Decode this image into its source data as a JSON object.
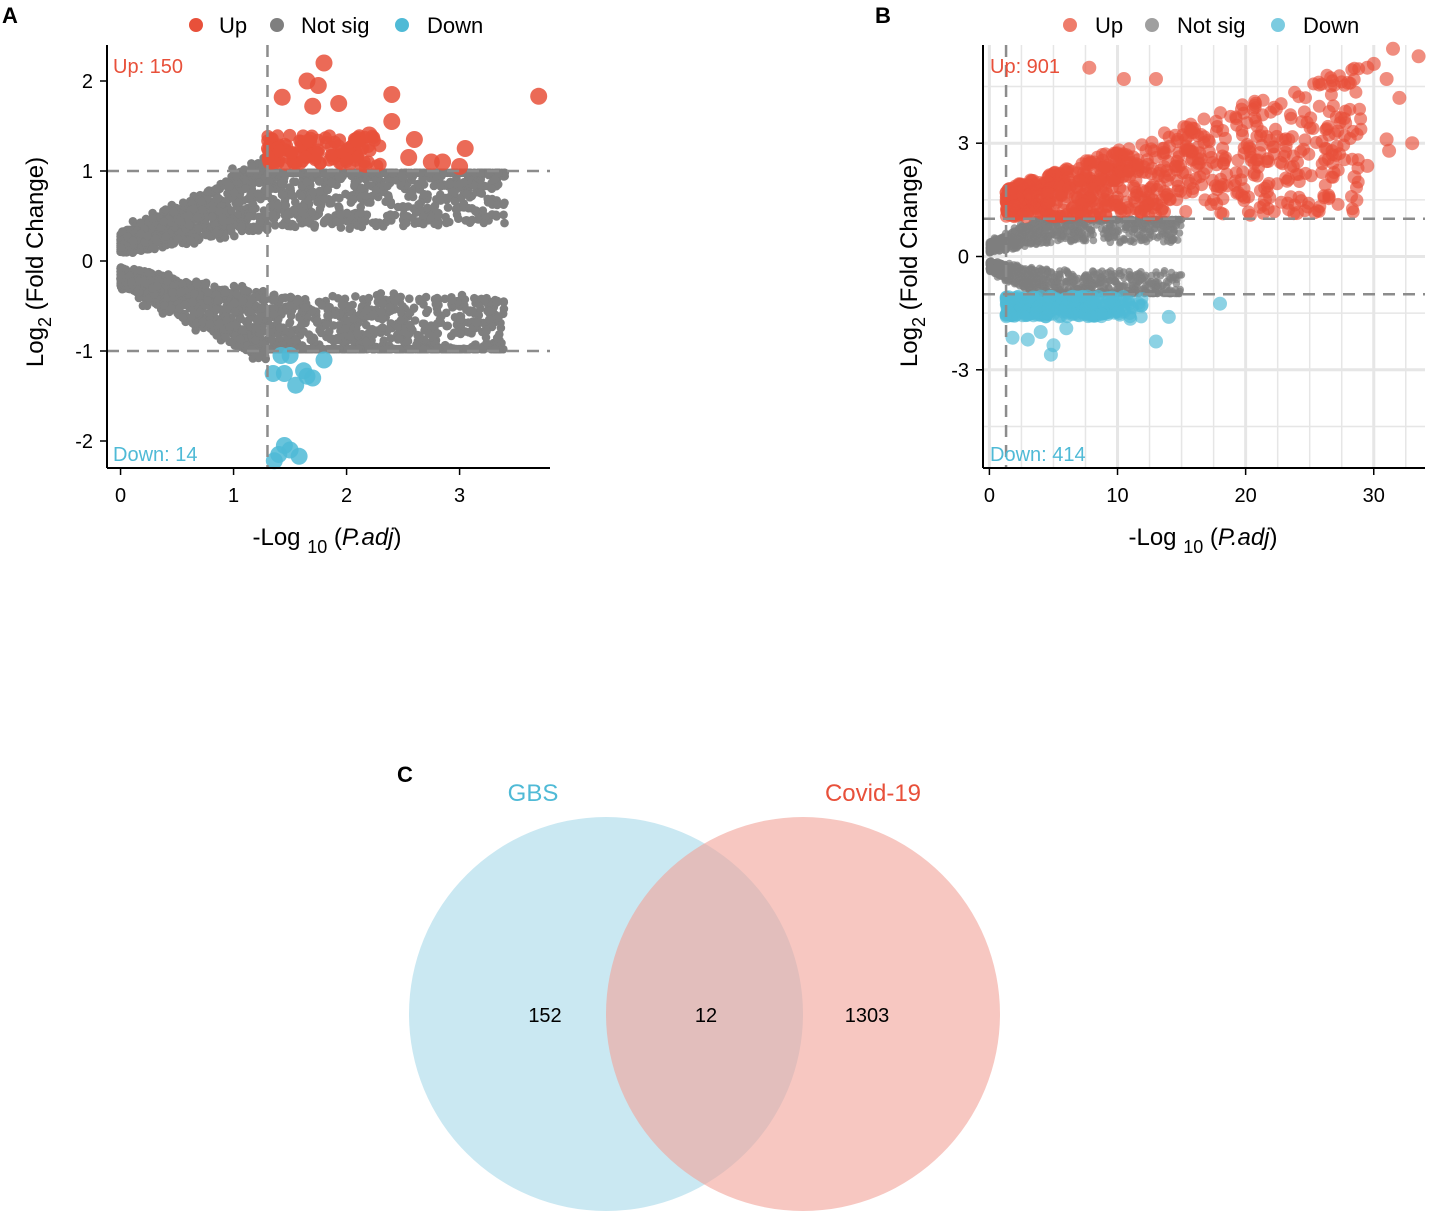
{
  "colors": {
    "up": "#e8503a",
    "not_sig": "#7f7f7f",
    "down": "#4fbad6",
    "gbs_fill": "#a6d9ea",
    "covid_fill": "#f1a198",
    "axis": "#000000",
    "threshold": "#8c8c8c",
    "grid": "#e6e6e6"
  },
  "legend": {
    "up": "Up",
    "not_sig": "Not sig",
    "down": "Down"
  },
  "chart_data": [
    {
      "panel": "A",
      "type": "scatter",
      "subtype": "volcano",
      "xlabel_prefix": "-Log ",
      "xlabel_sub": "10",
      "xlabel_italic": "P.adj",
      "ylabel_prefix": "Log",
      "ylabel_sub": "2",
      "ylabel_rest": " (Fold Change)",
      "xlim": [
        -0.12,
        3.8
      ],
      "ylim": [
        -2.3,
        2.4
      ],
      "xticks": [
        0,
        1,
        2,
        3
      ],
      "xtick_labels": [
        "0",
        "1",
        "2",
        "3"
      ],
      "yticks": [
        -2,
        -1,
        0,
        1,
        2
      ],
      "ytick_labels": [
        "-2",
        "-1",
        "0",
        "1",
        "2"
      ],
      "grid": false,
      "thresholds": {
        "x": 1.3,
        "y": [
          1,
          -1
        ]
      },
      "up_label": "Up: 150",
      "down_label": "Down: 14",
      "series_up_highlight": [
        {
          "x": 1.8,
          "y": 2.2
        },
        {
          "x": 1.65,
          "y": 2.0
        },
        {
          "x": 1.75,
          "y": 1.95
        },
        {
          "x": 1.43,
          "y": 1.82
        },
        {
          "x": 1.7,
          "y": 1.72
        },
        {
          "x": 1.93,
          "y": 1.75
        },
        {
          "x": 2.4,
          "y": 1.85
        },
        {
          "x": 2.4,
          "y": 1.55
        },
        {
          "x": 3.7,
          "y": 1.83
        },
        {
          "x": 2.6,
          "y": 1.35
        },
        {
          "x": 3.05,
          "y": 1.25
        },
        {
          "x": 2.1,
          "y": 1.35
        },
        {
          "x": 2.2,
          "y": 1.4
        },
        {
          "x": 2.75,
          "y": 1.1
        },
        {
          "x": 2.85,
          "y": 1.1
        },
        {
          "x": 3.0,
          "y": 1.05
        },
        {
          "x": 2.55,
          "y": 1.15
        }
      ],
      "series_down_highlight": [
        {
          "x": 1.42,
          "y": -1.05
        },
        {
          "x": 1.5,
          "y": -1.05
        },
        {
          "x": 1.8,
          "y": -1.1
        },
        {
          "x": 1.35,
          "y": -1.25
        },
        {
          "x": 1.45,
          "y": -1.25
        },
        {
          "x": 1.62,
          "y": -1.22
        },
        {
          "x": 1.65,
          "y": -1.28
        },
        {
          "x": 1.7,
          "y": -1.3
        },
        {
          "x": 1.55,
          "y": -1.38
        },
        {
          "x": 1.45,
          "y": -2.05
        },
        {
          "x": 1.4,
          "y": -2.15
        },
        {
          "x": 1.36,
          "y": -2.22
        },
        {
          "x": 1.58,
          "y": -2.17
        },
        {
          "x": 1.5,
          "y": -2.1
        }
      ]
    },
    {
      "panel": "B",
      "type": "scatter",
      "subtype": "volcano",
      "xlabel_prefix": "-Log ",
      "xlabel_sub": "10",
      "xlabel_italic": "P.adj",
      "ylabel_prefix": "Log",
      "ylabel_sub": "2",
      "ylabel_rest": " (Fold Change)",
      "xlim": [
        -0.5,
        34
      ],
      "ylim": [
        -5.6,
        5.6
      ],
      "xticks": [
        0,
        10,
        20,
        30
      ],
      "xtick_labels": [
        "0",
        "10",
        "20",
        "30"
      ],
      "yticks": [
        -3,
        0,
        3
      ],
      "ytick_labels": [
        "-3",
        "0",
        "3"
      ],
      "grid": true,
      "thresholds": {
        "x": 1.3,
        "y": [
          1,
          -1
        ]
      },
      "up_label": "Up: 901",
      "down_label": "Down: 414",
      "series_up_highlight": [
        {
          "x": 33.5,
          "y": 5.3
        },
        {
          "x": 31.5,
          "y": 5.5
        },
        {
          "x": 30,
          "y": 5.1
        },
        {
          "x": 29.5,
          "y": 5.0
        },
        {
          "x": 31,
          "y": 4.7
        },
        {
          "x": 32,
          "y": 4.2
        },
        {
          "x": 28,
          "y": 4.6
        },
        {
          "x": 7.8,
          "y": 5.0
        },
        {
          "x": 10.5,
          "y": 4.7
        },
        {
          "x": 13,
          "y": 4.7
        },
        {
          "x": 33,
          "y": 3.0
        },
        {
          "x": 31,
          "y": 3.1
        },
        {
          "x": 31.2,
          "y": 2.8
        },
        {
          "x": 29.5,
          "y": 2.4
        },
        {
          "x": 28.5,
          "y": 2.1
        },
        {
          "x": 24,
          "y": 1.15
        },
        {
          "x": 21.5,
          "y": 1.5
        }
      ],
      "series_down_highlight": [
        {
          "x": 18,
          "y": -1.25
        },
        {
          "x": 14,
          "y": -1.6
        },
        {
          "x": 13,
          "y": -2.25
        },
        {
          "x": 11,
          "y": -1.65
        },
        {
          "x": 10.5,
          "y": -1.45
        },
        {
          "x": 5,
          "y": -2.35
        },
        {
          "x": 4.8,
          "y": -2.6
        },
        {
          "x": 3,
          "y": -2.2
        },
        {
          "x": 4,
          "y": -2.0
        },
        {
          "x": 6,
          "y": -1.9
        },
        {
          "x": 1.8,
          "y": -2.15
        }
      ]
    },
    {
      "panel": "C",
      "type": "venn",
      "sets": [
        "GBS",
        "Covid-19"
      ],
      "gbs_only": "152",
      "overlap": "12",
      "covid_only": "1303"
    }
  ]
}
